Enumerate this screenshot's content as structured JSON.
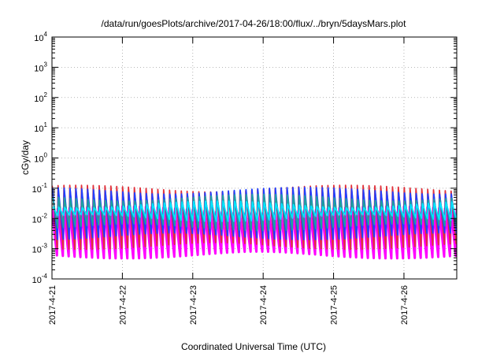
{
  "chart_data": {
    "type": "line",
    "title": "/data/run/goesPlots/archive/2017-04-26/18:00/flux/../bryn/5daysMars.plot",
    "xlabel": "Coordinated Universal Time (UTC)",
    "ylabel": "cGy/day",
    "yscale": "log",
    "ylim": [
      0.0001,
      10000
    ],
    "y_ticks": [
      {
        "base": "10",
        "exp": "-4",
        "value": 0.0001
      },
      {
        "base": "10",
        "exp": "-3",
        "value": 0.001
      },
      {
        "base": "10",
        "exp": "-2",
        "value": 0.01
      },
      {
        "base": "10",
        "exp": "-1",
        "value": 0.1
      },
      {
        "base": "10",
        "exp": "0",
        "value": 1
      },
      {
        "base": "10",
        "exp": "1",
        "value": 10
      },
      {
        "base": "10",
        "exp": "2",
        "value": 100
      },
      {
        "base": "10",
        "exp": "3",
        "value": 1000
      },
      {
        "base": "10",
        "exp": "4",
        "value": 10000
      }
    ],
    "xlim": [
      "2017-04-21T00:00",
      "2017-04-26T18:00"
    ],
    "x_ticks": [
      "2017-4-21",
      "2017-4-22",
      "2017-4-23",
      "2017-4-24",
      "2017-4-25",
      "2017-4-26"
    ],
    "grid": true,
    "orbit_period_hours": 2,
    "series": [
      {
        "color": "#ff00ff",
        "peak": 0.02,
        "trough": 0.0006
      },
      {
        "color": "#e0303a",
        "peak": 0.1,
        "trough": 0.0012
      },
      {
        "color": "#2040ff",
        "peak": 0.085,
        "trough": 0.0025
      },
      {
        "color": "#1fa0a0",
        "peak": 0.05,
        "trough": 0.005
      },
      {
        "color": "#00e5ff",
        "peak": 0.03,
        "trough": 0.01
      }
    ]
  }
}
